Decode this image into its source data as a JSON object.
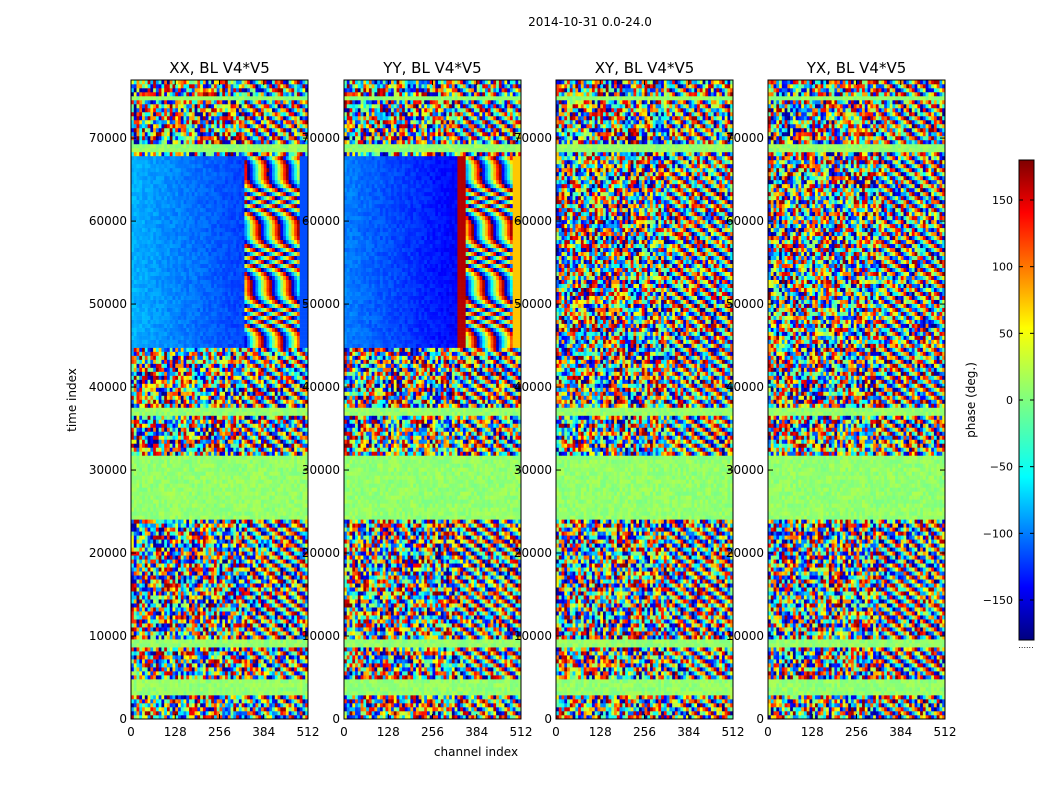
{
  "chart_data": {
    "type": "heatmap",
    "suptitle": "2014-10-31 0.0-24.0",
    "xlabel": "channel index",
    "ylabel": "time index",
    "xlim": [
      0,
      512
    ],
    "ylim": [
      0,
      77000
    ],
    "x_ticks": [
      0,
      128,
      256,
      384,
      512
    ],
    "y_ticks": [
      0,
      10000,
      20000,
      30000,
      40000,
      50000,
      60000,
      70000
    ],
    "panels": [
      {
        "title": "XX, BL V4*V5"
      },
      {
        "title": "YY, BL V4*V5"
      },
      {
        "title": "XY, BL V4*V5"
      },
      {
        "title": "YX, BL V4*V5"
      }
    ],
    "colorbar": {
      "label": "phase (deg.)",
      "range": [
        -180,
        180
      ],
      "ticks": [
        -150,
        -100,
        -50,
        0,
        50,
        100,
        150
      ],
      "colormap": "jet",
      "bottom_marker": "......"
    }
  }
}
